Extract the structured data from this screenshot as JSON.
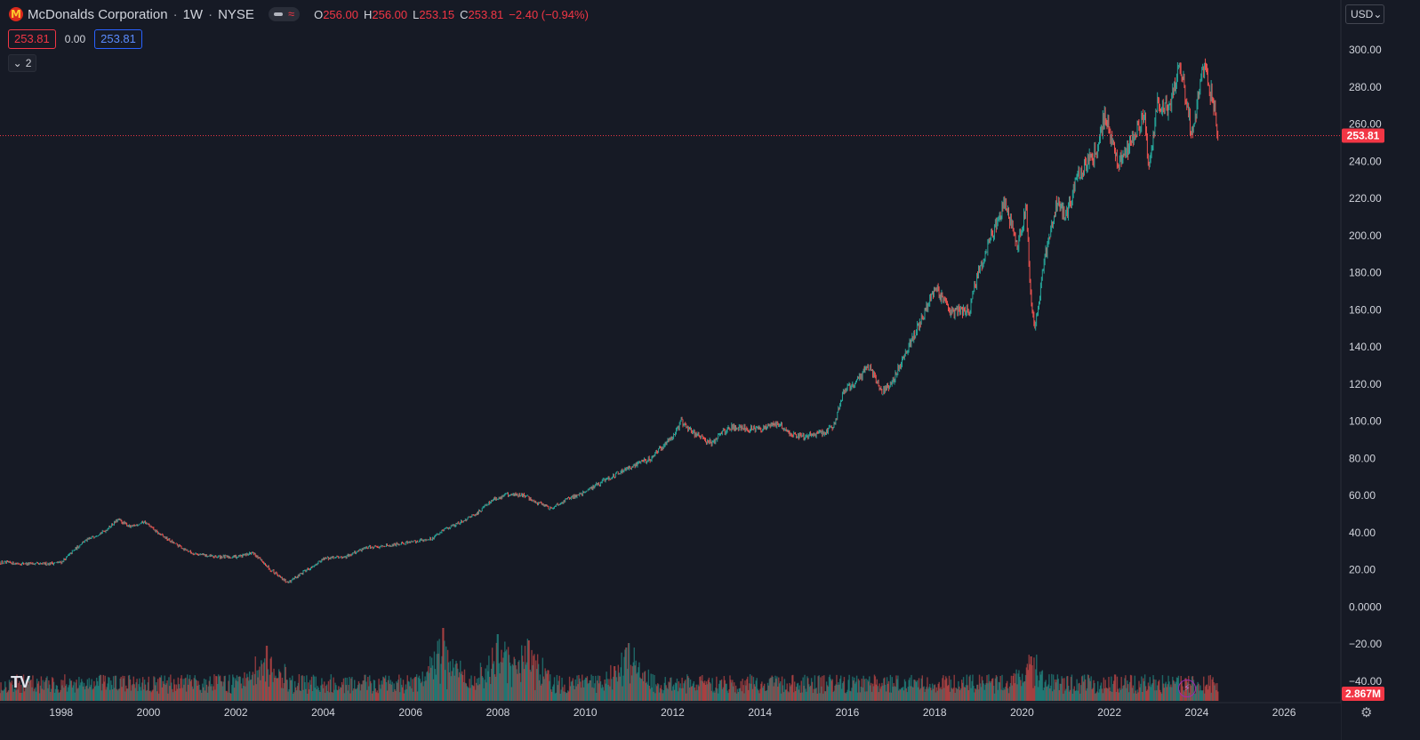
{
  "header": {
    "symbol_title": "McDonalds Corporation",
    "interval": "1W",
    "exchange": "NYSE",
    "ohlc": {
      "o_label": "O",
      "o": "256.00",
      "h_label": "H",
      "h": "256.00",
      "l_label": "L",
      "l": "253.15",
      "c_label": "C",
      "c": "253.81",
      "change": "−2.40 (−0.94%)"
    }
  },
  "order_row": {
    "sell": "253.81",
    "spread": "0.00",
    "buy": "253.81"
  },
  "indicators_collapsed": {
    "count": "2"
  },
  "currency": {
    "label": "USD"
  },
  "colors": {
    "bg": "#161a25",
    "up": "#26a69a",
    "down": "#ef5350",
    "price_line": "#f23645",
    "grid": "#1e222d"
  },
  "chart_data": {
    "type": "candlestick",
    "x_ticks": [
      "1998",
      "2000",
      "2002",
      "2004",
      "2006",
      "2008",
      "2010",
      "2012",
      "2014",
      "2016",
      "2018",
      "2020",
      "2022",
      "2024",
      "2026"
    ],
    "y_ticks": [
      "300.00",
      "280.00",
      "260.00",
      "240.00",
      "220.00",
      "200.00",
      "180.00",
      "160.00",
      "140.00",
      "120.00",
      "100.00",
      "80.00",
      "60.00",
      "40.00",
      "20.00",
      "0.0000",
      "−20.00",
      "−40.00"
    ],
    "ylim": [
      -40,
      300
    ],
    "xlim": [
      1996.6,
      2027.3
    ],
    "last_price": 253.81,
    "last_price_label": "253.81",
    "volume_label": "2.867M",
    "price_anchors": [
      [
        1996.6,
        24
      ],
      [
        1997.5,
        23
      ],
      [
        1998.0,
        24
      ],
      [
        1998.5,
        35
      ],
      [
        1999.0,
        41
      ],
      [
        1999.3,
        47
      ],
      [
        1999.6,
        43
      ],
      [
        1999.9,
        46
      ],
      [
        2000.2,
        40
      ],
      [
        2000.6,
        34
      ],
      [
        2001.0,
        29
      ],
      [
        2001.5,
        27
      ],
      [
        2002.0,
        27
      ],
      [
        2002.4,
        29
      ],
      [
        2002.8,
        20
      ],
      [
        2003.2,
        13
      ],
      [
        2003.5,
        18
      ],
      [
        2004.0,
        26
      ],
      [
        2004.5,
        27
      ],
      [
        2005.0,
        32
      ],
      [
        2005.5,
        33
      ],
      [
        2006.0,
        35
      ],
      [
        2006.5,
        37
      ],
      [
        2006.8,
        42
      ],
      [
        2007.0,
        44
      ],
      [
        2007.5,
        50
      ],
      [
        2007.9,
        58
      ],
      [
        2008.3,
        61
      ],
      [
        2008.6,
        60
      ],
      [
        2008.9,
        56
      ],
      [
        2009.2,
        53
      ],
      [
        2009.5,
        57
      ],
      [
        2010.0,
        62
      ],
      [
        2010.5,
        69
      ],
      [
        2011.0,
        75
      ],
      [
        2011.5,
        80
      ],
      [
        2012.0,
        92
      ],
      [
        2012.2,
        100
      ],
      [
        2012.5,
        93
      ],
      [
        2012.9,
        88
      ],
      [
        2013.3,
        97
      ],
      [
        2013.7,
        96
      ],
      [
        2014.0,
        96
      ],
      [
        2014.4,
        99
      ],
      [
        2014.7,
        93
      ],
      [
        2015.0,
        92
      ],
      [
        2015.5,
        94
      ],
      [
        2015.7,
        98
      ],
      [
        2015.9,
        115
      ],
      [
        2016.3,
        124
      ],
      [
        2016.5,
        130
      ],
      [
        2016.8,
        116
      ],
      [
        2017.0,
        120
      ],
      [
        2017.4,
        140
      ],
      [
        2017.8,
        160
      ],
      [
        2018.0,
        172
      ],
      [
        2018.4,
        158
      ],
      [
        2018.8,
        160
      ],
      [
        2019.0,
        180
      ],
      [
        2019.3,
        200
      ],
      [
        2019.6,
        218
      ],
      [
        2019.9,
        195
      ],
      [
        2020.1,
        215
      ],
      [
        2020.2,
        165
      ],
      [
        2020.3,
        150
      ],
      [
        2020.5,
        185
      ],
      [
        2020.8,
        218
      ],
      [
        2021.0,
        210
      ],
      [
        2021.3,
        233
      ],
      [
        2021.7,
        245
      ],
      [
        2021.9,
        265
      ],
      [
        2022.2,
        240
      ],
      [
        2022.5,
        250
      ],
      [
        2022.8,
        265
      ],
      [
        2022.9,
        236
      ],
      [
        2023.1,
        272
      ],
      [
        2023.4,
        268
      ],
      [
        2023.6,
        294
      ],
      [
        2023.8,
        268
      ],
      [
        2023.9,
        252
      ],
      [
        2024.1,
        290
      ],
      [
        2024.2,
        288
      ],
      [
        2024.4,
        270
      ],
      [
        2024.5,
        253.81
      ]
    ],
    "volume_spikes": [
      [
        2006.75,
        62
      ],
      [
        2008.0,
        55
      ],
      [
        2008.7,
        48
      ],
      [
        2011.0,
        45
      ],
      [
        2020.2,
        30
      ],
      [
        2002.7,
        42
      ]
    ]
  }
}
